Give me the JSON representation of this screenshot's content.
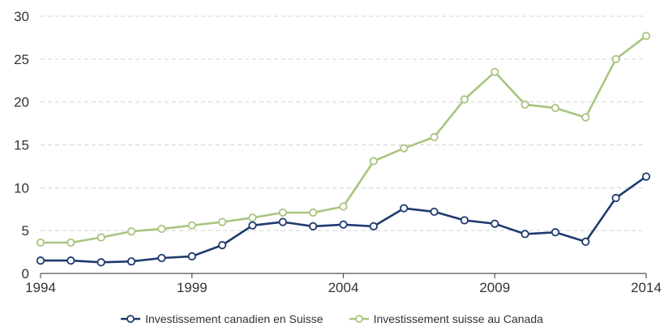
{
  "chart_data": {
    "type": "line",
    "title": "",
    "xlabel": "",
    "ylabel": "",
    "x": [
      1994,
      1995,
      1996,
      1997,
      1998,
      1999,
      2000,
      2001,
      2002,
      2003,
      2004,
      2005,
      2006,
      2007,
      2008,
      2009,
      2010,
      2011,
      2012,
      2013,
      2014
    ],
    "xticks": [
      "1994",
      "1999",
      "2004",
      "2009",
      "2014"
    ],
    "yticks": [
      "0",
      "5",
      "10",
      "15",
      "20",
      "25",
      "30"
    ],
    "ylim": [
      0,
      30
    ],
    "grid": true,
    "legend_position": "bottom",
    "series": [
      {
        "name": "Investissement canadien en Suisse",
        "color": "#1f3a6e",
        "values": [
          1.5,
          1.5,
          1.3,
          1.4,
          1.8,
          2.0,
          3.3,
          5.6,
          6.0,
          5.5,
          5.7,
          5.5,
          7.6,
          7.2,
          6.2,
          5.8,
          4.6,
          4.8,
          3.7,
          8.8,
          11.3
        ]
      },
      {
        "name": "Investissement suisse au Canada",
        "color": "#a8c57f",
        "values": [
          3.6,
          3.6,
          4.2,
          4.9,
          5.2,
          5.6,
          6.0,
          6.5,
          7.1,
          7.1,
          7.8,
          13.1,
          14.6,
          15.9,
          20.3,
          23.5,
          19.7,
          19.3,
          18.2,
          25.0,
          27.7
        ]
      }
    ]
  }
}
